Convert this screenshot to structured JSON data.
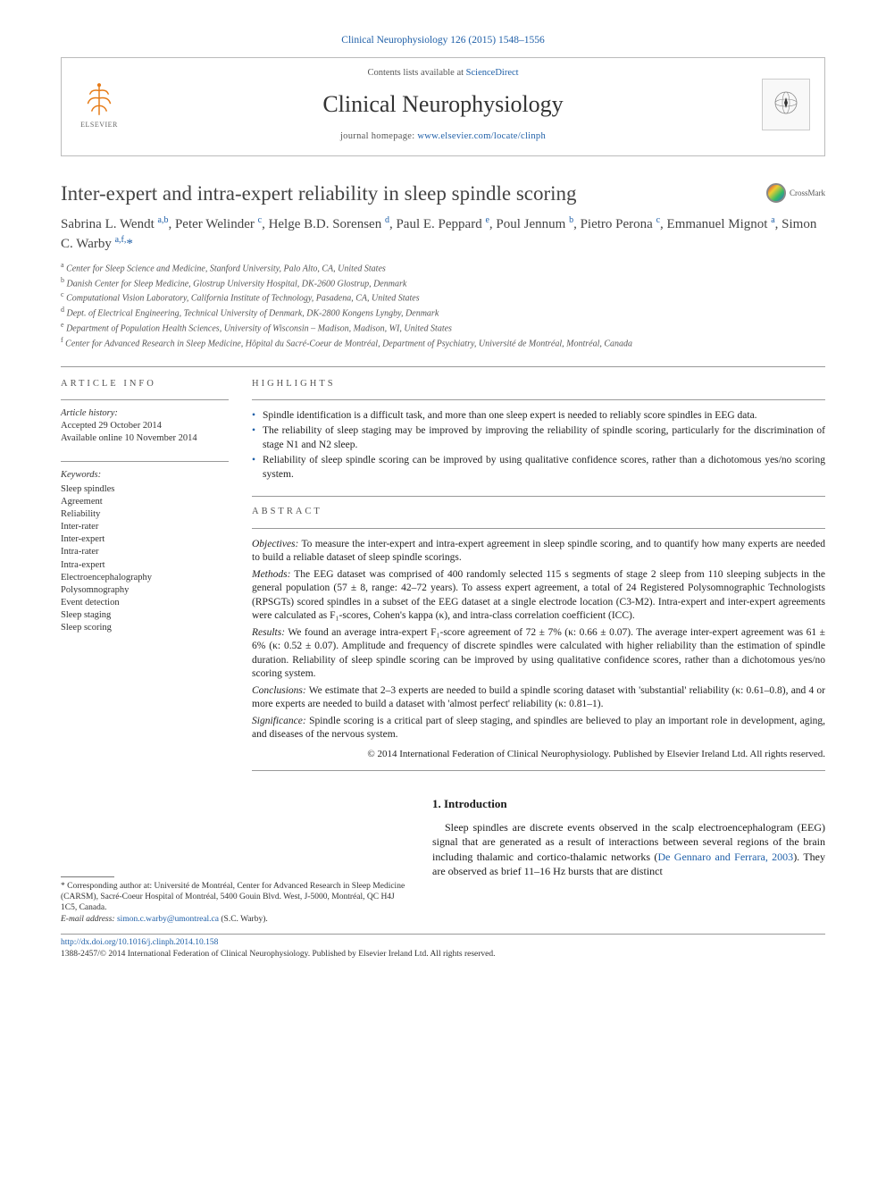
{
  "citation": "Clinical Neurophysiology 126 (2015) 1548–1556",
  "header": {
    "contents_prefix": "Contents lists available at ",
    "contents_link": "ScienceDirect",
    "journal": "Clinical Neurophysiology",
    "homepage_prefix": "journal homepage: ",
    "homepage_url": "www.elsevier.com/locate/clinph",
    "publisher": "ELSEVIER"
  },
  "article": {
    "title": "Inter-expert and intra-expert reliability in sleep spindle scoring",
    "crossmark": "CrossMark",
    "authors_html": "Sabrina L. Wendt <sup>a,b</sup>, Peter Welinder <sup>c</sup>, Helge B.D. Sorensen <sup>d</sup>, Paul E. Peppard <sup>e</sup>, Poul Jennum <sup>b</sup>, Pietro Perona <sup>c</sup>, Emmanuel Mignot <sup>a</sup>, Simon C. Warby <sup>a,f,</sup><span class='star'>*</span>",
    "affiliations": [
      {
        "sup": "a",
        "text": "Center for Sleep Science and Medicine, Stanford University, Palo Alto, CA, United States"
      },
      {
        "sup": "b",
        "text": "Danish Center for Sleep Medicine, Glostrup University Hospital, DK-2600 Glostrup, Denmark"
      },
      {
        "sup": "c",
        "text": "Computational Vision Laboratory, California Institute of Technology, Pasadena, CA, United States"
      },
      {
        "sup": "d",
        "text": "Dept. of Electrical Engineering, Technical University of Denmark, DK-2800 Kongens Lyngby, Denmark"
      },
      {
        "sup": "e",
        "text": "Department of Population Health Sciences, University of Wisconsin – Madison, Madison, WI, United States"
      },
      {
        "sup": "f",
        "text": "Center for Advanced Research in Sleep Medicine, Hôpital du Sacré-Coeur de Montréal, Department of Psychiatry, Université de Montréal, Montréal, Canada"
      }
    ]
  },
  "info": {
    "header": "ARTICLE INFO",
    "history_label": "Article history:",
    "accepted": "Accepted 29 October 2014",
    "online": "Available online 10 November 2014",
    "keywords_label": "Keywords:",
    "keywords": [
      "Sleep spindles",
      "Agreement",
      "Reliability",
      "Inter-rater",
      "Inter-expert",
      "Intra-rater",
      "Intra-expert",
      "Electroencephalography",
      "Polysomnography",
      "Event detection",
      "Sleep staging",
      "Sleep scoring"
    ]
  },
  "highlights": {
    "header": "HIGHLIGHTS",
    "items": [
      "Spindle identification is a difficult task, and more than one sleep expert is needed to reliably score spindles in EEG data.",
      "The reliability of sleep staging may be improved by improving the reliability of spindle scoring, particularly for the discrimination of stage N1 and N2 sleep.",
      "Reliability of sleep spindle scoring can be improved by using qualitative confidence scores, rather than a dichotomous yes/no scoring system."
    ]
  },
  "abstract": {
    "header": "ABSTRACT",
    "objectives_label": "Objectives:",
    "objectives": "To measure the inter-expert and intra-expert agreement in sleep spindle scoring, and to quantify how many experts are needed to build a reliable dataset of sleep spindle scorings.",
    "methods_label": "Methods:",
    "methods": "The EEG dataset was comprised of 400 randomly selected 115 s segments of stage 2 sleep from 110 sleeping subjects in the general population (57 ± 8, range: 42–72 years). To assess expert agreement, a total of 24 Registered Polysomnographic Technologists (RPSGTs) scored spindles in a subset of the EEG dataset at a single electrode location (C3-M2). Intra-expert and inter-expert agreements were calculated as F₁-scores, Cohen's kappa (κ), and intra-class correlation coefficient (ICC).",
    "results_label": "Results:",
    "results": "We found an average intra-expert F₁-score agreement of 72 ± 7% (κ: 0.66 ± 0.07). The average inter-expert agreement was 61 ± 6% (κ: 0.52 ± 0.07). Amplitude and frequency of discrete spindles were calculated with higher reliability than the estimation of spindle duration. Reliability of sleep spindle scoring can be improved by using qualitative confidence scores, rather than a dichotomous yes/no scoring system.",
    "conclusions_label": "Conclusions:",
    "conclusions": "We estimate that 2–3 experts are needed to build a spindle scoring dataset with 'substantial' reliability (κ: 0.61–0.8), and 4 or more experts are needed to build a dataset with 'almost perfect' reliability (κ: 0.81–1).",
    "significance_label": "Significance:",
    "significance": "Spindle scoring is a critical part of sleep staging, and spindles are believed to play an important role in development, aging, and diseases of the nervous system.",
    "copyright": "© 2014 International Federation of Clinical Neurophysiology. Published by Elsevier Ireland Ltd. All rights reserved."
  },
  "intro": {
    "heading": "1. Introduction",
    "text_pre": "Sleep spindles are discrete events observed in the scalp electroencephalogram (EEG) signal that are generated as a result of interactions between several regions of the brain including thalamic and cortico-thalamic networks (",
    "ref": "De Gennaro and Ferrara, 2003",
    "text_post": "). They are observed as brief 11–16 Hz bursts that are distinct"
  },
  "footnote": {
    "corr_label": "* Corresponding author at: ",
    "corr_text": "Université de Montréal, Center for Advanced Research in Sleep Medicine (CARSM), Sacré-Coeur Hospital of Montréal, 5400 Gouin Blvd. West, J-5000, Montréal, QC H4J 1C5, Canada.",
    "email_label": "E-mail address: ",
    "email": "simon.c.warby@umontreal.ca",
    "email_who": " (S.C. Warby)."
  },
  "footer": {
    "doi": "http://dx.doi.org/10.1016/j.clinph.2014.10.158",
    "issn": "1388-2457/© 2014 International Federation of Clinical Neurophysiology. Published by Elsevier Ireland Ltd. All rights reserved."
  },
  "colors": {
    "link": "#2060a8",
    "text": "#1a1a1a",
    "muted": "#555555",
    "border": "#bbbbbb"
  }
}
